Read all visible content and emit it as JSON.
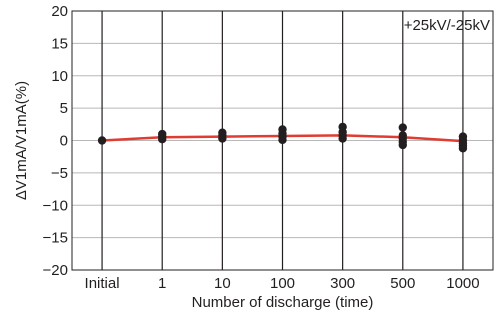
{
  "chart_data": {
    "type": "line",
    "title": "",
    "xlabel": "Number of discharge (time)",
    "ylabel": "ΔV1mA/V1mA(%)",
    "annotation": "+25kV/-25kV",
    "categories": [
      "Initial",
      "1",
      "10",
      "100",
      "300",
      "500",
      "1000"
    ],
    "ylim": [
      -20,
      20
    ],
    "yticks": [
      20,
      15,
      10,
      5,
      0,
      -5,
      -10,
      -15,
      -20
    ],
    "ytick_labels": [
      "20",
      "15",
      "10",
      "5",
      "0",
      "−5",
      "−10",
      "−15",
      "−20"
    ],
    "grid": "horizontal and vertical",
    "series": [
      {
        "type": "line",
        "color": "#e03c31",
        "values": [
          0,
          0.5,
          0.6,
          0.7,
          0.8,
          0.5,
          -0.1
        ]
      },
      {
        "type": "scatter",
        "color": "#231f20",
        "points": [
          [
            0,
            0
          ],
          [
            1,
            1.0
          ],
          [
            1,
            0.6
          ],
          [
            1,
            0.2
          ],
          [
            2,
            1.2
          ],
          [
            2,
            0.8
          ],
          [
            2,
            0.3
          ],
          [
            3,
            1.7
          ],
          [
            3,
            1.1
          ],
          [
            3,
            0.6
          ],
          [
            3,
            0.1
          ],
          [
            4,
            2.1
          ],
          [
            4,
            1.3
          ],
          [
            4,
            0.8
          ],
          [
            4,
            0.3
          ],
          [
            5,
            2.0
          ],
          [
            5,
            0.8
          ],
          [
            5,
            0.3
          ],
          [
            5,
            -0.2
          ],
          [
            5,
            -0.7
          ],
          [
            6,
            0.6
          ],
          [
            6,
            0.1
          ],
          [
            6,
            -0.4
          ],
          [
            6,
            -0.8
          ],
          [
            6,
            -1.2
          ]
        ]
      }
    ]
  }
}
